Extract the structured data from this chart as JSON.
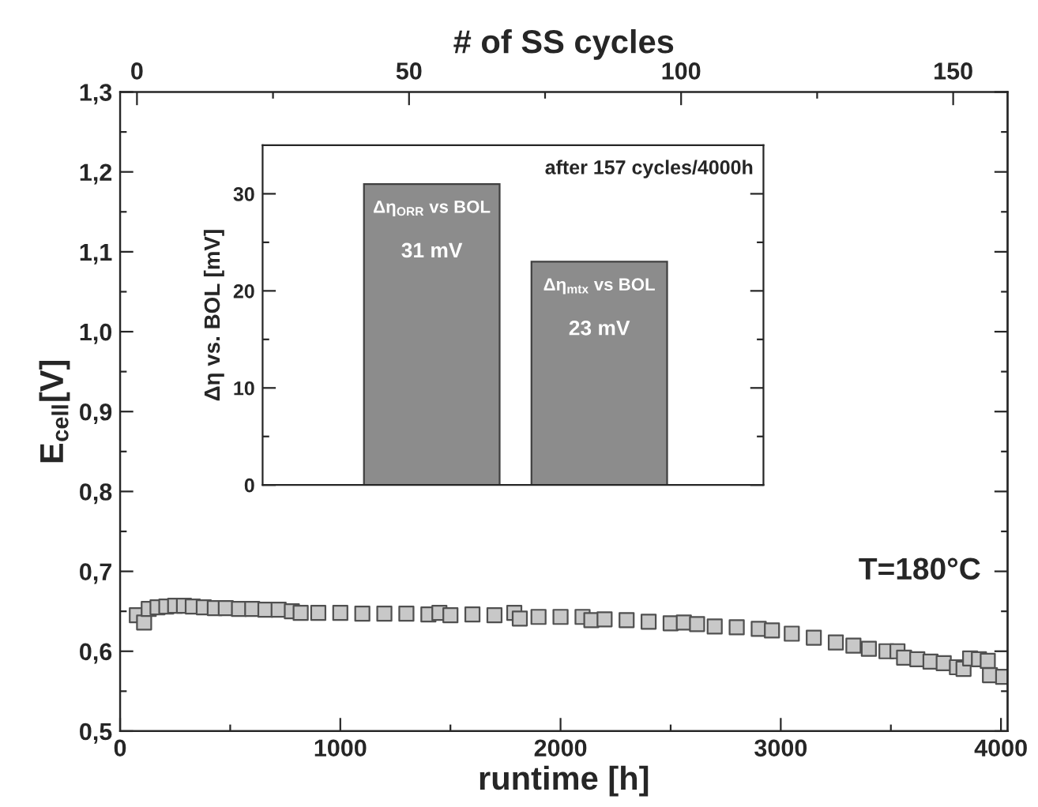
{
  "chart_data": [
    {
      "type": "scatter",
      "xlabel": "runtime [h]",
      "ylabel": "E$_{cell}$[V]",
      "x2label": "# of SS cycles",
      "x": [
        76,
        109,
        130,
        170,
        210,
        250,
        290,
        330,
        380,
        430,
        480,
        540,
        600,
        660,
        720,
        780,
        820,
        900,
        1000,
        1100,
        1200,
        1300,
        1400,
        1450,
        1500,
        1600,
        1700,
        1790,
        1815,
        1900,
        2000,
        2100,
        2140,
        2200,
        2300,
        2400,
        2500,
        2560,
        2620,
        2700,
        2800,
        2900,
        2960,
        3050,
        3150,
        3250,
        3330,
        3400,
        3480,
        3530,
        3560,
        3620,
        3680,
        3740,
        3800,
        3830,
        3860,
        3900,
        3940,
        3950,
        4010
      ],
      "values": [
        0.645,
        0.636,
        0.653,
        0.655,
        0.656,
        0.657,
        0.657,
        0.656,
        0.655,
        0.654,
        0.654,
        0.653,
        0.653,
        0.652,
        0.652,
        0.65,
        0.648,
        0.648,
        0.648,
        0.647,
        0.647,
        0.647,
        0.646,
        0.648,
        0.645,
        0.646,
        0.645,
        0.648,
        0.641,
        0.643,
        0.643,
        0.643,
        0.639,
        0.64,
        0.639,
        0.637,
        0.635,
        0.636,
        0.634,
        0.631,
        0.63,
        0.628,
        0.626,
        0.622,
        0.617,
        0.611,
        0.607,
        0.603,
        0.6,
        0.6,
        0.592,
        0.59,
        0.587,
        0.585,
        0.58,
        0.578,
        0.591,
        0.59,
        0.588,
        0.57,
        0.568
      ],
      "color": "#c8c8c8",
      "marker": "square",
      "xlim": [
        0,
        4030
      ],
      "xticks": [
        0,
        {
          "value": 500,
          "label": null
        },
        1000,
        {
          "value": 1500,
          "label": null
        },
        2000,
        {
          "value": 2500,
          "label": null
        },
        3000,
        {
          "value": 3500,
          "label": null
        },
        4000
      ],
      "x2lim": [
        -3.1,
        160
      ],
      "x2ticks": [
        0,
        {
          "value": 25,
          "label": null
        },
        50,
        {
          "value": 75,
          "label": null
        },
        100,
        {
          "value": 125,
          "label": null
        },
        150
      ],
      "ylim": [
        0.5,
        1.3
      ],
      "yticks": [
        {
          "value": 0.5,
          "label": "0,5"
        },
        {
          "value": 0.55,
          "label": null
        },
        {
          "value": 0.6,
          "label": "0,6"
        },
        {
          "value": 0.65,
          "label": null
        },
        {
          "value": 0.7,
          "label": "0,7"
        },
        {
          "value": 0.75,
          "label": null
        },
        {
          "value": 0.8,
          "label": "0,8"
        },
        {
          "value": 0.85,
          "label": null
        },
        {
          "value": 0.9,
          "label": "0,9"
        },
        {
          "value": 0.95,
          "label": null
        },
        {
          "value": 1.0,
          "label": "1,0"
        },
        {
          "value": 1.05,
          "label": null
        },
        {
          "value": 1.1,
          "label": "1,1"
        },
        {
          "value": 1.15,
          "label": null
        },
        {
          "value": 1.2,
          "label": "1,2"
        },
        {
          "value": 1.25,
          "label": null
        },
        {
          "value": 1.3,
          "label": "1,3"
        }
      ],
      "annotations": [
        "T=180°C"
      ]
    },
    {
      "type": "bar",
      "ylabel": "Δη vs. BOL [mV]",
      "categories": [
        "Δη$_{ORR}$ vs BOL",
        "Δη$_{mtx}$ vs BOL"
      ],
      "values": [
        31,
        23
      ],
      "value_labels": [
        "31 mV",
        "23 mV"
      ],
      "color": "#8c8c8c",
      "ylim": [
        0,
        35
      ],
      "yticks": [
        0,
        {
          "value": 5,
          "label": null
        },
        10,
        {
          "value": 15,
          "label": null
        },
        20,
        {
          "value": 25,
          "label": null
        },
        30
      ],
      "annotations": [
        "after 157 cycles/4000h"
      ]
    }
  ]
}
